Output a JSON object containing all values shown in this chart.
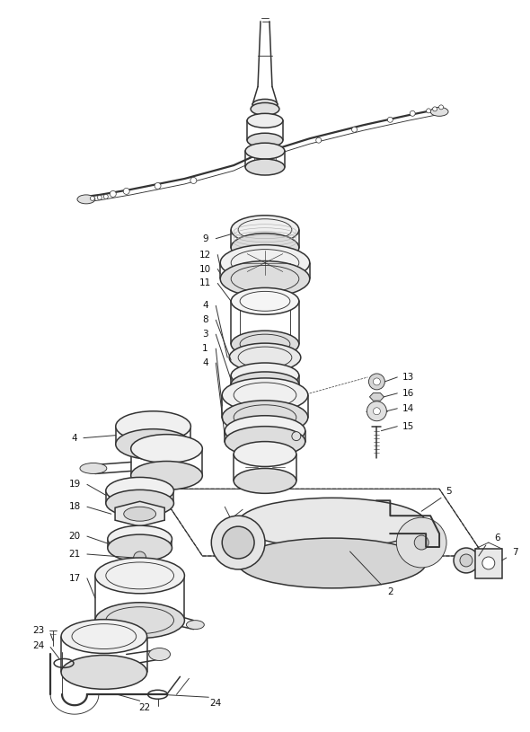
{
  "bg_color": "#ffffff",
  "line_color": "#333333",
  "label_color": "#111111",
  "fig_width": 5.9,
  "fig_height": 8.15,
  "dpi": 100,
  "lw_main": 1.1,
  "lw_thin": 0.65,
  "lw_thick": 1.6,
  "label_fontsize": 7.5
}
